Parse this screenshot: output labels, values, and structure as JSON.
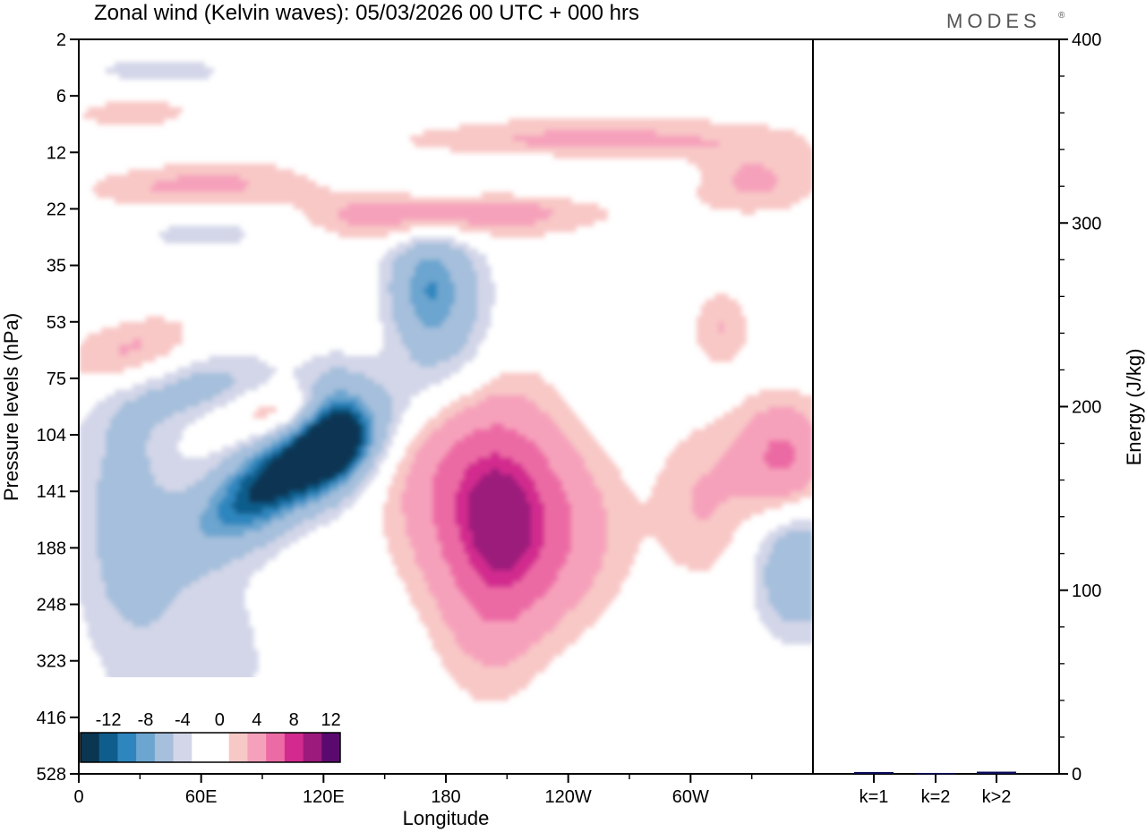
{
  "header": {
    "title": "Zonal wind (Kelvin waves):  05/03/2026  00 UTC  + 000 hrs",
    "brand": "MODES",
    "brand_mark": "®"
  },
  "chart_data": [
    {
      "type": "heatmap",
      "title": "Zonal wind (Kelvin waves):  05/03/2026  00 UTC  + 000 hrs",
      "xlabel": "Longitude",
      "ylabel": "Pressure levels (hPa)",
      "x_ticks": [
        "0",
        "60E",
        "120E",
        "180",
        "120W",
        "60W"
      ],
      "x_tick_degrees": [
        0,
        60,
        120,
        180,
        240,
        300
      ],
      "xlim": [
        0,
        360
      ],
      "y_ticks": [
        "2",
        "6",
        "12",
        "22",
        "35",
        "53",
        "75",
        "104",
        "141",
        "188",
        "248",
        "323",
        "416",
        "528"
      ],
      "legend": {
        "labels": [
          "-12",
          "-8",
          "-4",
          "0",
          "4",
          "8",
          "12"
        ],
        "placement": "bottom-left",
        "colors": [
          "#0a3652",
          "#0f5d8c",
          "#2f86be",
          "#6ca5cf",
          "#a5bfdc",
          "#d3d6e8",
          "#ffffff",
          "#ffffff",
          "#f8c8c6",
          "#f6a1bb",
          "#ec6ba4",
          "#d22a8e",
          "#9c1a7c",
          "#5a0a6e"
        ]
      },
      "features": [
        {
          "kind": "negative",
          "lon": 105,
          "level_index": 7.6,
          "peak_ms": -14
        },
        {
          "kind": "negative",
          "lon": 170,
          "level_index": 4.4,
          "peak_ms": -8
        },
        {
          "kind": "negative",
          "lon": 352,
          "level_index": 9.5,
          "peak_ms": -6
        },
        {
          "kind": "positive",
          "lon": 195,
          "level_index": 7.8,
          "peak_ms": 10
        },
        {
          "kind": "positive",
          "lon": 345,
          "level_index": 7.4,
          "peak_ms": 8
        },
        {
          "kind": "positive",
          "lon": 25,
          "level_index": 5.6,
          "peak_ms": 6
        },
        {
          "kind": "positive",
          "lon": 170,
          "level_index": 3.0,
          "peak_ms": 8
        }
      ]
    },
    {
      "type": "bar",
      "xlabel": "",
      "ylabel": "Energy (J/kg)",
      "categories": [
        "k=1",
        "k=2",
        "k>2"
      ],
      "values": [
        1,
        0.5,
        1.2
      ],
      "ylim": [
        0,
        400
      ],
      "y_ticks": [
        "0",
        "100",
        "200",
        "300",
        "400"
      ],
      "color": "#0a0a5a"
    }
  ]
}
